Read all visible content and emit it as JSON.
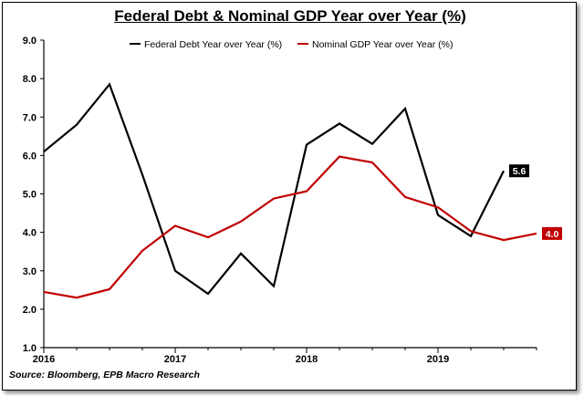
{
  "chart_data": {
    "type": "line",
    "title": "Federal Debt & Nominal GDP Year over Year (%)",
    "source": "Source: Bloomberg, EPB Macro Research",
    "x_tick_labels": [
      "2016",
      "2017",
      "2018",
      "2019"
    ],
    "x_ticks": [
      2016,
      2017,
      2018,
      2019
    ],
    "xlim": [
      2016,
      2019.75
    ],
    "y_tick_labels": [
      "1.0",
      "2.0",
      "3.0",
      "4.0",
      "5.0",
      "6.0",
      "7.0",
      "8.0",
      "9.0"
    ],
    "ylim": [
      1.0,
      9.0
    ],
    "grid": false,
    "legend_position": "top",
    "series": [
      {
        "name": "Federal Debt Year over Year (%)",
        "color": "#000000",
        "end_label": "5.6",
        "x": [
          2016.0,
          2016.25,
          2016.5,
          2016.75,
          2017.0,
          2017.25,
          2017.5,
          2017.75,
          2018.0,
          2018.25,
          2018.5,
          2018.75,
          2019.0,
          2019.25,
          2019.5
        ],
        "y": [
          6.1,
          6.8,
          7.85,
          5.5,
          3.0,
          2.4,
          3.45,
          2.6,
          6.28,
          6.83,
          6.3,
          7.22,
          4.45,
          3.9,
          5.6
        ]
      },
      {
        "name": "Nominal GDP Year over Year (%)",
        "color": "#c00000",
        "end_label": "4.0",
        "x": [
          2016.0,
          2016.25,
          2016.5,
          2016.75,
          2017.0,
          2017.25,
          2017.5,
          2017.75,
          2018.0,
          2018.25,
          2018.5,
          2018.75,
          2019.0,
          2019.25,
          2019.5,
          2019.75
        ],
        "y": [
          2.45,
          2.3,
          2.52,
          3.52,
          4.17,
          3.87,
          4.28,
          4.88,
          5.07,
          5.97,
          5.82,
          4.92,
          4.65,
          4.03,
          3.8,
          3.97
        ]
      }
    ]
  }
}
